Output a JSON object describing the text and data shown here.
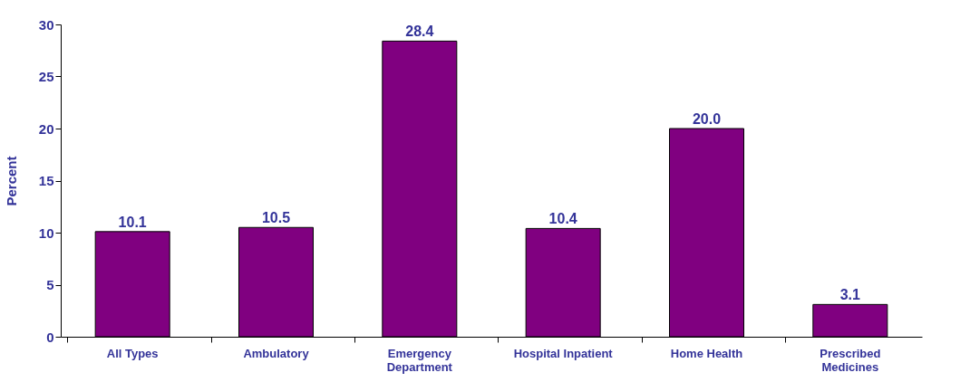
{
  "chart_data": {
    "type": "bar",
    "ylabel": "Percent",
    "categories": [
      "All Types",
      "Ambulatory",
      "Emergency Department",
      "Hospital Inpatient",
      "Home Health",
      "Prescribed Medicines"
    ],
    "values": [
      10.1,
      10.5,
      28.4,
      10.4,
      20.0,
      3.1
    ],
    "value_labels": [
      "10.1",
      "10.5",
      "28.4",
      "10.4",
      "20.0",
      "3.1"
    ],
    "color": "#800080",
    "ylim": [
      0,
      30
    ],
    "yticks": [
      0,
      5,
      10,
      15,
      20,
      25,
      30
    ],
    "grid": false
  }
}
